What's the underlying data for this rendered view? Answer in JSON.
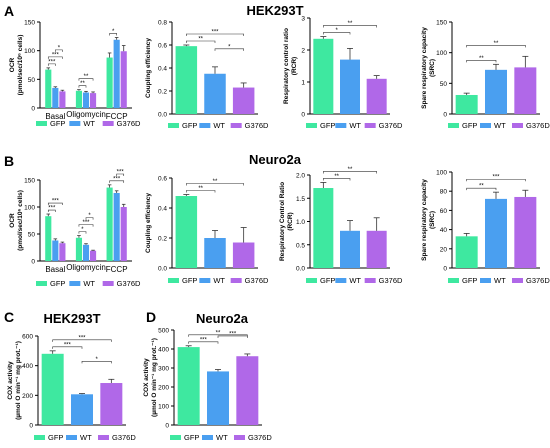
{
  "colors": {
    "GFP": "#3ee8a0",
    "WT": "#4a9ff0",
    "G376D": "#b068e8",
    "axis": "#000000"
  },
  "legend_labels": [
    "GFP",
    "WT",
    "G376D"
  ],
  "panel_labels": {
    "A": "A",
    "B": "B",
    "C": "C",
    "D": "D"
  },
  "row_titles": {
    "A": "HEK293T",
    "B": "Neuro2a",
    "C": "HEK293T",
    "D": "Neuro2a"
  },
  "chart_data": [
    {
      "id": "A_ocr",
      "type": "bar",
      "panel": "A",
      "xlabel": "",
      "ylabel": [
        "OCR",
        "(pmol/sec/10⁶ cells)"
      ],
      "categories": [
        "Basal",
        "Oligomycin",
        "FCCP"
      ],
      "series": [
        {
          "name": "GFP",
          "values": [
            67,
            30,
            88
          ],
          "errors": [
            3,
            2,
            8
          ]
        },
        {
          "name": "WT",
          "values": [
            35,
            27,
            119
          ],
          "errors": [
            2,
            2,
            4
          ]
        },
        {
          "name": "G376D",
          "values": [
            29,
            26,
            99
          ],
          "errors": [
            2,
            2,
            10
          ]
        }
      ],
      "ylim": [
        0,
        150
      ],
      "yticks": [
        0,
        50,
        100,
        150
      ],
      "tick_labels": [
        "0",
        "50",
        "100",
        "150"
      ],
      "legend": "bottom",
      "significance": [
        {
          "g": 0,
          "from": 0,
          "to": 1,
          "label": "***"
        },
        {
          "g": 0,
          "from": 0,
          "to": 2,
          "label": "***"
        },
        {
          "g": 0,
          "from": 1,
          "to": 2,
          "label": "*"
        },
        {
          "g": 1,
          "from": 0,
          "to": 1,
          "label": "**"
        },
        {
          "g": 1,
          "from": 0,
          "to": 2,
          "label": "**"
        },
        {
          "g": 2,
          "from": 0,
          "to": 1,
          "label": "*"
        }
      ]
    },
    {
      "id": "A_ce",
      "type": "bar",
      "panel": "A",
      "xlabel": "",
      "ylabel": [
        "Coupling efficiency"
      ],
      "categories": [
        "GFP",
        "WT",
        "G376D"
      ],
      "values": [
        0.59,
        0.35,
        0.23
      ],
      "errors": [
        0.01,
        0.06,
        0.04
      ],
      "ylim": [
        0,
        0.8
      ],
      "yticks": [
        0,
        0.2,
        0.4,
        0.6,
        0.8
      ],
      "tick_labels": [
        "0.0",
        "0.2",
        "0.4",
        "0.6",
        "0.8"
      ],
      "legend": "bottom",
      "significance": [
        {
          "from": 0,
          "to": 1,
          "label": "**"
        },
        {
          "from": 0,
          "to": 2,
          "label": "***"
        },
        {
          "from": 1,
          "to": 2,
          "label": "*"
        }
      ]
    },
    {
      "id": "A_rcr",
      "type": "bar",
      "panel": "A",
      "xlabel": "",
      "ylabel": [
        "Respiratory control ratio",
        "(RCR)"
      ],
      "categories": [
        "GFP",
        "WT",
        "G376D"
      ],
      "values": [
        2.35,
        1.7,
        1.1
      ],
      "errors": [
        0.07,
        0.35,
        0.1
      ],
      "ylim": [
        0,
        3
      ],
      "yticks": [
        0,
        1,
        2,
        3
      ],
      "tick_labels": [
        "0",
        "1",
        "2",
        "3"
      ],
      "legend": "bottom",
      "significance": [
        {
          "from": 0,
          "to": 1,
          "label": "*"
        },
        {
          "from": 0,
          "to": 2,
          "label": "**"
        }
      ]
    },
    {
      "id": "A_src",
      "type": "bar",
      "panel": "A",
      "xlabel": "",
      "ylabel": [
        "Spare respiratory capacity",
        "(SRC)"
      ],
      "categories": [
        "GFP",
        "WT",
        "G376D"
      ],
      "values": [
        31,
        72,
        76
      ],
      "errors": [
        3,
        9,
        18
      ],
      "ylim": [
        0,
        150
      ],
      "yticks": [
        0,
        50,
        100,
        150
      ],
      "tick_labels": [
        "0",
        "50",
        "100",
        "150"
      ],
      "legend": "bottom",
      "significance": [
        {
          "from": 0,
          "to": 1,
          "label": "**"
        },
        {
          "from": 0,
          "to": 2,
          "label": "**"
        }
      ]
    },
    {
      "id": "B_ocr",
      "type": "bar",
      "panel": "B",
      "xlabel": "",
      "ylabel": [
        "OCR",
        "(pmol/sec/10⁶ cells)"
      ],
      "categories": [
        "Basal",
        "Oligomycin",
        "FCCP"
      ],
      "series": [
        {
          "name": "GFP",
          "values": [
            83,
            43,
            136
          ],
          "errors": [
            4,
            4,
            5
          ]
        },
        {
          "name": "WT",
          "values": [
            38,
            30,
            126
          ],
          "errors": [
            3,
            2,
            4
          ]
        },
        {
          "name": "G376D",
          "values": [
            33,
            19,
            100
          ],
          "errors": [
            2,
            1,
            5
          ]
        }
      ],
      "ylim": [
        0,
        150
      ],
      "yticks": [
        0,
        50,
        100,
        150
      ],
      "tick_labels": [
        "0",
        "50",
        "100",
        "150"
      ],
      "legend": "bottom",
      "significance": [
        {
          "g": 0,
          "from": 0,
          "to": 1,
          "label": "***"
        },
        {
          "g": 0,
          "from": 0,
          "to": 2,
          "label": "***"
        },
        {
          "g": 1,
          "from": 0,
          "to": 1,
          "label": "*"
        },
        {
          "g": 1,
          "from": 0,
          "to": 2,
          "label": "***"
        },
        {
          "g": 1,
          "from": 1,
          "to": 2,
          "label": "*"
        },
        {
          "g": 2,
          "from": 0,
          "to": 2,
          "label": "***"
        },
        {
          "g": 2,
          "from": 1,
          "to": 2,
          "label": "***"
        }
      ]
    },
    {
      "id": "B_ce",
      "type": "bar",
      "panel": "B",
      "xlabel": "",
      "ylabel": [
        "Coupling efficiency"
      ],
      "categories": [
        "GFP",
        "WT",
        "G376D"
      ],
      "values": [
        0.48,
        0.2,
        0.17
      ],
      "errors": [
        0.01,
        0.05,
        0.1
      ],
      "ylim": [
        0,
        0.6
      ],
      "yticks": [
        0,
        0.2,
        0.4,
        0.6
      ],
      "tick_labels": [
        "0.0",
        "0.2",
        "0.4",
        "0.6"
      ],
      "legend": "bottom",
      "significance": [
        {
          "from": 0,
          "to": 1,
          "label": "**"
        },
        {
          "from": 0,
          "to": 2,
          "label": "**"
        }
      ]
    },
    {
      "id": "B_rcr",
      "type": "bar",
      "panel": "B",
      "xlabel": "",
      "ylabel": [
        "Respiratory Control Ratio",
        "(RCR)"
      ],
      "categories": [
        "GFP",
        "WT",
        "G376D"
      ],
      "values": [
        1.72,
        0.8,
        0.8
      ],
      "errors": [
        0.12,
        0.22,
        0.28
      ],
      "ylim": [
        0,
        2
      ],
      "yticks": [
        0,
        0.5,
        1,
        1.5,
        2
      ],
      "tick_labels": [
        "0.0",
        "0.5",
        "1.0",
        "1.5",
        "2.0"
      ],
      "legend": "bottom",
      "significance": [
        {
          "from": 0,
          "to": 1,
          "label": "**"
        },
        {
          "from": 0,
          "to": 2,
          "label": "**"
        }
      ]
    },
    {
      "id": "B_src",
      "type": "bar",
      "panel": "B",
      "xlabel": "",
      "ylabel": [
        "Spare respiratory capacity",
        "(SRC)"
      ],
      "categories": [
        "GFP",
        "WT",
        "G376D"
      ],
      "values": [
        33,
        72,
        74
      ],
      "errors": [
        3,
        7,
        7
      ],
      "ylim": [
        0,
        100
      ],
      "yticks": [
        0,
        20,
        40,
        60,
        80,
        100
      ],
      "tick_labels": [
        "0",
        "20",
        "40",
        "60",
        "80",
        "100"
      ],
      "legend": "bottom",
      "significance": [
        {
          "from": 0,
          "to": 1,
          "label": "**"
        },
        {
          "from": 0,
          "to": 2,
          "label": "***"
        }
      ]
    },
    {
      "id": "C_cox",
      "type": "bar",
      "panel": "C",
      "title": "HEK293T",
      "xlabel": "",
      "ylabel": [
        "COX activity",
        "(µmol O min⁻¹ mg prot.⁻¹)"
      ],
      "categories": [
        "GFP",
        "WT",
        "G376D"
      ],
      "values": [
        480,
        207,
        283
      ],
      "errors": [
        20,
        5,
        25
      ],
      "ylim": [
        0,
        600
      ],
      "yticks": [
        0,
        200,
        400,
        600
      ],
      "tick_labels": [
        "0",
        "200",
        "400",
        "600"
      ],
      "legend": "bottom",
      "significance": [
        {
          "from": 0,
          "to": 1,
          "label": "***"
        },
        {
          "from": 0,
          "to": 2,
          "label": "***"
        },
        {
          "from": 1,
          "to": 2,
          "label": "*"
        }
      ]
    },
    {
      "id": "D_cox",
      "type": "bar",
      "panel": "D",
      "title": "Neuro2a",
      "xlabel": "",
      "ylabel": [
        "COX activity",
        "(µmol O min⁻¹ mg prot.⁻¹)"
      ],
      "categories": [
        "GFP",
        "WT",
        "G376D"
      ],
      "values": [
        410,
        282,
        362
      ],
      "errors": [
        7,
        10,
        12
      ],
      "ylim": [
        0,
        500
      ],
      "yticks": [
        0,
        100,
        200,
        300,
        400,
        500
      ],
      "tick_labels": [
        "0",
        "100",
        "200",
        "300",
        "400",
        "500"
      ],
      "legend": "bottom",
      "significance": [
        {
          "from": 0,
          "to": 1,
          "label": "***"
        },
        {
          "from": 0,
          "to": 2,
          "label": "**"
        },
        {
          "from": 1,
          "to": 2,
          "label": "***"
        }
      ]
    }
  ]
}
